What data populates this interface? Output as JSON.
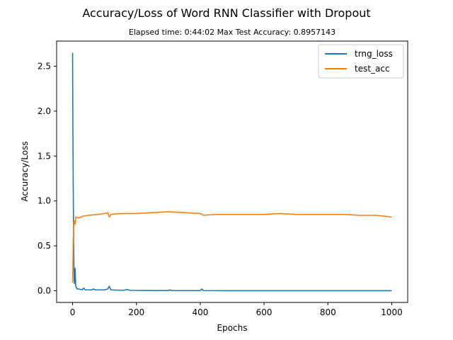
{
  "chart_data": {
    "type": "line",
    "title": "Accuracy/Loss of Word RNN Classifier with Dropout",
    "subtitle": "Elapsed time: 0:44:02   Max Test Accuracy: 0.8957143",
    "xlabel": "Epochs",
    "ylabel": "Accuracy/Loss",
    "xlim": [
      -50,
      1050
    ],
    "ylim": [
      -0.13,
      2.78
    ],
    "xticks": [
      0,
      200,
      400,
      600,
      800,
      1000
    ],
    "xtick_labels": [
      "0",
      "200",
      "400",
      "600",
      "800",
      "1000"
    ],
    "yticks": [
      0.0,
      0.5,
      1.0,
      1.5,
      2.0,
      2.5
    ],
    "ytick_labels": [
      "0.0",
      "0.5",
      "1.0",
      "1.5",
      "2.0",
      "2.5"
    ],
    "grid": false,
    "legend_position": "top-right",
    "series": [
      {
        "name": "trng_loss",
        "color": "#1f77b4",
        "points": [
          [
            0,
            2.65
          ],
          [
            1,
            1.8
          ],
          [
            2,
            1.2
          ],
          [
            3,
            0.7
          ],
          [
            4,
            0.35
          ],
          [
            5,
            0.12
          ],
          [
            6,
            0.08
          ],
          [
            8,
            0.25
          ],
          [
            10,
            0.05
          ],
          [
            14,
            0.02
          ],
          [
            20,
            0.02
          ],
          [
            30,
            0.01
          ],
          [
            35,
            0.03
          ],
          [
            40,
            0.01
          ],
          [
            60,
            0.01
          ],
          [
            65,
            0.02
          ],
          [
            70,
            0.01
          ],
          [
            100,
            0.01
          ],
          [
            110,
            0.02
          ],
          [
            115,
            0.05
          ],
          [
            120,
            0.01
          ],
          [
            160,
            0.005
          ],
          [
            170,
            0.015
          ],
          [
            180,
            0.005
          ],
          [
            250,
            0.003
          ],
          [
            300,
            0.003
          ],
          [
            305,
            0.01
          ],
          [
            310,
            0.002
          ],
          [
            400,
            0.002
          ],
          [
            405,
            0.02
          ],
          [
            410,
            0.002
          ],
          [
            500,
            0.001
          ],
          [
            600,
            0.001
          ],
          [
            700,
            0.001
          ],
          [
            800,
            0.001
          ],
          [
            900,
            0.001
          ],
          [
            1000,
            0.001
          ]
        ]
      },
      {
        "name": "test_acc",
        "color": "#ff7f0e",
        "points": [
          [
            0,
            0.09
          ],
          [
            2,
            0.5
          ],
          [
            3,
            0.7
          ],
          [
            5,
            0.78
          ],
          [
            8,
            0.74
          ],
          [
            10,
            0.82
          ],
          [
            20,
            0.81
          ],
          [
            30,
            0.83
          ],
          [
            50,
            0.84
          ],
          [
            80,
            0.85
          ],
          [
            100,
            0.86
          ],
          [
            110,
            0.87
          ],
          [
            115,
            0.82
          ],
          [
            120,
            0.85
          ],
          [
            150,
            0.86
          ],
          [
            200,
            0.86
          ],
          [
            250,
            0.87
          ],
          [
            300,
            0.88
          ],
          [
            350,
            0.87
          ],
          [
            400,
            0.86
          ],
          [
            410,
            0.84
          ],
          [
            450,
            0.85
          ],
          [
            500,
            0.85
          ],
          [
            550,
            0.85
          ],
          [
            600,
            0.85
          ],
          [
            650,
            0.86
          ],
          [
            700,
            0.85
          ],
          [
            750,
            0.85
          ],
          [
            800,
            0.85
          ],
          [
            850,
            0.85
          ],
          [
            900,
            0.84
          ],
          [
            950,
            0.84
          ],
          [
            980,
            0.83
          ],
          [
            1000,
            0.82
          ]
        ]
      }
    ]
  }
}
